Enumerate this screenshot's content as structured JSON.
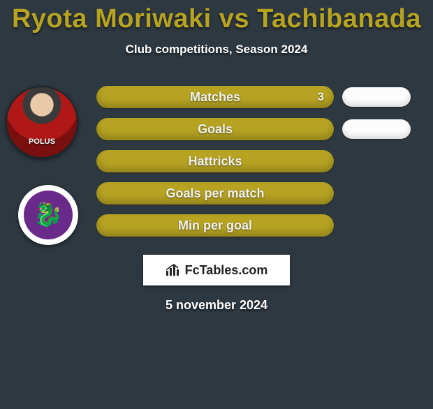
{
  "title_color": "#b6a321",
  "background_color": "#2e3840",
  "player1": "Ryota Moriwaki",
  "vs_word": "vs",
  "player2": "Tachibanada",
  "subtitle": "Club competitions, Season 2024",
  "player_jersey_text": "POLUS",
  "club_badge": {
    "bg": "#6a2a8a",
    "emoji": "🐉"
  },
  "stats": [
    {
      "label": "Matches",
      "left_value": "3",
      "left_width": 340,
      "right_width": 98,
      "fill": "#b6a321"
    },
    {
      "label": "Goals",
      "left_value": "",
      "left_width": 340,
      "right_width": 98,
      "fill": "#b6a321"
    },
    {
      "label": "Hattricks",
      "left_value": "",
      "left_width": 340,
      "right_width": 0,
      "fill": "#b6a321"
    },
    {
      "label": "Goals per match",
      "left_value": "",
      "left_width": 340,
      "right_width": 0,
      "fill": "#b6a321"
    },
    {
      "label": "Min per goal",
      "left_value": "",
      "left_width": 340,
      "right_width": 0,
      "fill": "#b6a321"
    }
  ],
  "brand": "FcTables.com",
  "date": "5 november 2024",
  "right_pill_bg": "#fdfdfd"
}
